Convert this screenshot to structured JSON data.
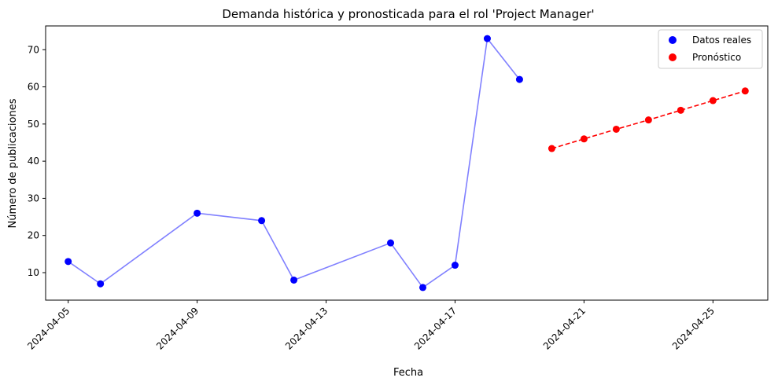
{
  "chart_data": {
    "type": "line",
    "title": "Demanda histórica y pronosticada para el rol 'Project Manager'",
    "xlabel": "Fecha",
    "ylabel": "Número de publicaciones",
    "xlim": [
      "2024-04-04.3",
      "2024-04-26.7"
    ],
    "ylim": [
      2.6,
      76.4
    ],
    "x_ticks": [
      "2024-04-05",
      "2024-04-09",
      "2024-04-13",
      "2024-04-17",
      "2024-04-21",
      "2024-04-25"
    ],
    "y_ticks": [
      10,
      20,
      30,
      40,
      50,
      60,
      70
    ],
    "grid": false,
    "legend_position": "top-right",
    "series": [
      {
        "name": "Datos reales",
        "color": "#0000ff",
        "line_color": "#8080ff",
        "line_style": "solid",
        "marker": "circle",
        "points": [
          {
            "x": "2024-04-05",
            "y": 13
          },
          {
            "x": "2024-04-06",
            "y": 7
          },
          {
            "x": "2024-04-09",
            "y": 26
          },
          {
            "x": "2024-04-11",
            "y": 24
          },
          {
            "x": "2024-04-12",
            "y": 8
          },
          {
            "x": "2024-04-15",
            "y": 18
          },
          {
            "x": "2024-04-16",
            "y": 6
          },
          {
            "x": "2024-04-17",
            "y": 12
          },
          {
            "x": "2024-04-18",
            "y": 73
          },
          {
            "x": "2024-04-19",
            "y": 62
          }
        ]
      },
      {
        "name": "Pronóstico",
        "color": "#ff0000",
        "line_color": "#ff0000",
        "line_style": "dashed",
        "marker": "circle",
        "points": [
          {
            "x": "2024-04-20",
            "y": 43.4
          },
          {
            "x": "2024-04-21",
            "y": 46.0
          },
          {
            "x": "2024-04-22",
            "y": 48.6
          },
          {
            "x": "2024-04-23",
            "y": 51.1
          },
          {
            "x": "2024-04-24",
            "y": 53.7
          },
          {
            "x": "2024-04-25",
            "y": 56.3
          },
          {
            "x": "2024-04-26",
            "y": 58.9
          }
        ]
      }
    ]
  }
}
